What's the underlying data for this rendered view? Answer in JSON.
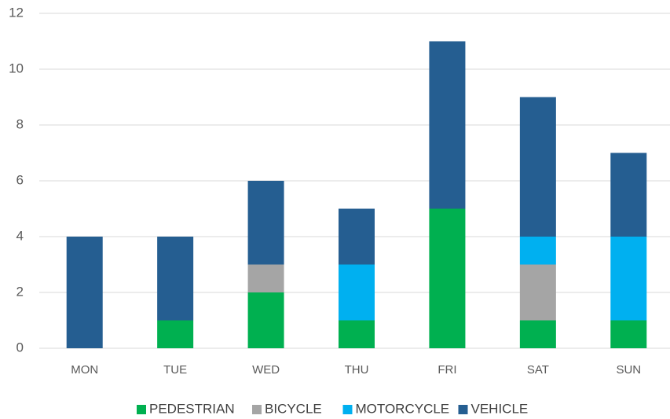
{
  "chart_data": {
    "type": "stacked_bar",
    "categories": [
      "MON",
      "TUE",
      "WED",
      "THU",
      "FRI",
      "SAT",
      "SUN"
    ],
    "series": [
      {
        "name": "PEDESTRIAN",
        "color": "#00b050",
        "values": [
          0,
          1,
          2,
          1,
          5,
          1,
          1
        ]
      },
      {
        "name": "BICYCLE",
        "color": "#a5a5a5",
        "values": [
          0,
          0,
          1,
          0,
          0,
          2,
          0
        ]
      },
      {
        "name": "MOTORCYCLE",
        "color": "#00b0f0",
        "values": [
          0,
          0,
          0,
          2,
          0,
          1,
          3
        ]
      },
      {
        "name": "VEHICLE",
        "color": "#255e91",
        "values": [
          4,
          3,
          3,
          2,
          6,
          5,
          3
        ]
      }
    ],
    "ylim": [
      0,
      12
    ],
    "yticks": [
      0,
      2,
      4,
      6,
      8,
      10,
      12
    ],
    "grid": true,
    "legend": "bottom"
  }
}
